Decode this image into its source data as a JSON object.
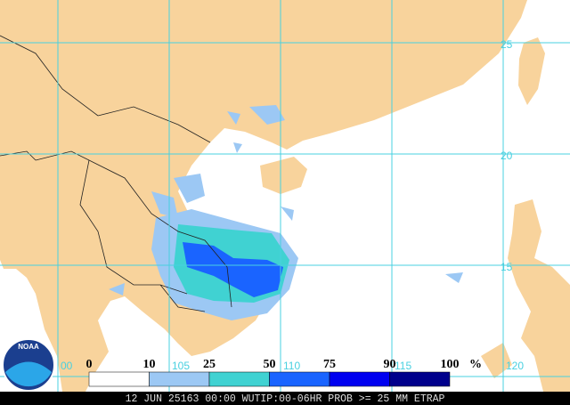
{
  "map": {
    "grid_labels": {
      "lat": [
        "25",
        "20",
        "15"
      ],
      "lon": [
        "00",
        "105",
        "110",
        "115",
        "120"
      ]
    },
    "legend": {
      "ticks": [
        0,
        10,
        25,
        50,
        75,
        90,
        100
      ],
      "unit": "%",
      "colors": [
        "#ffffff",
        "#9cc8f4",
        "#40d2d2",
        "#1a64ff",
        "#0000f0",
        "#00008c"
      ]
    },
    "caption": "12 JUN 25163 00:00 WUTIP:00-06HR PROB >= 25 MM ETRAP",
    "logo": "NOAA"
  }
}
